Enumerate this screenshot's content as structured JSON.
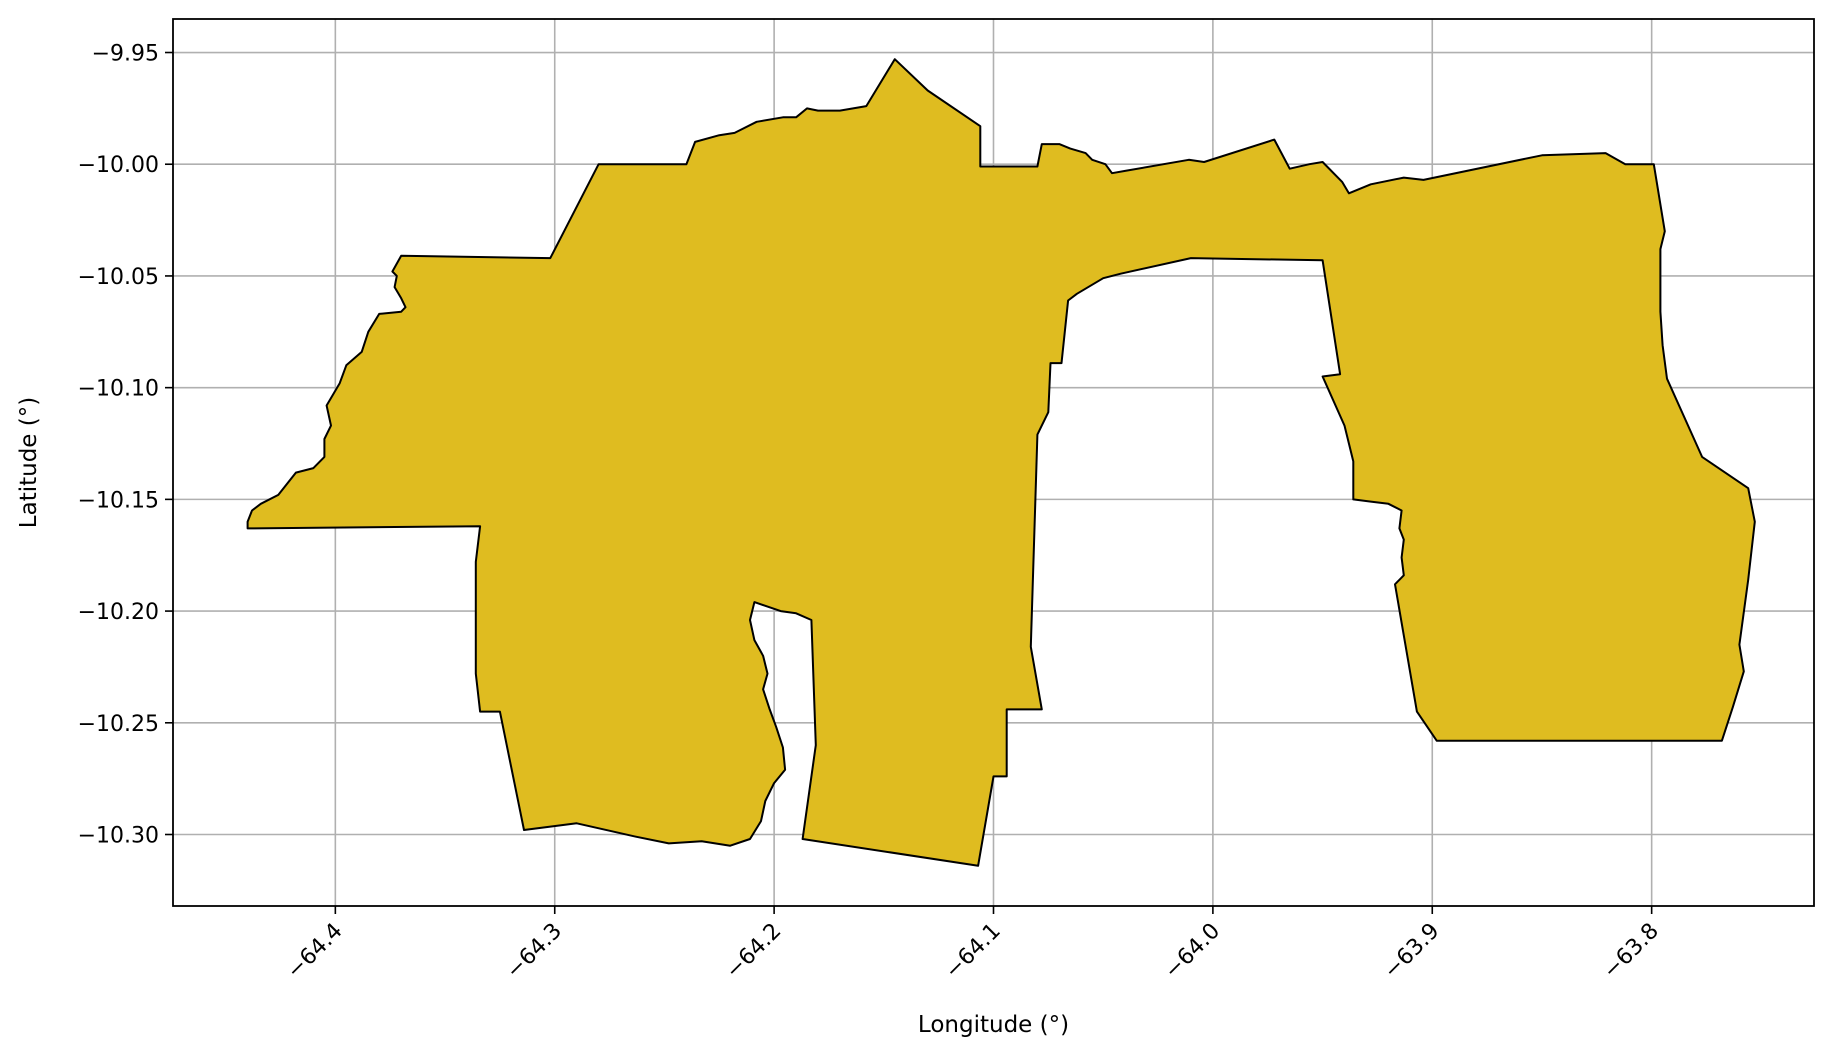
{
  "chart_data": {
    "type": "map",
    "xlabel": "Longitude (°)",
    "ylabel": "Latitude (°)",
    "xlim": [
      -64.474,
      -63.726
    ],
    "ylim": [
      -10.332,
      -9.935
    ],
    "xticks": [
      -64.4,
      -64.3,
      -64.2,
      -64.1,
      -64.0,
      -63.9,
      -63.8
    ],
    "xtick_labels": [
      "−64.4",
      "−64.3",
      "−64.2",
      "−64.1",
      "−64.0",
      "−63.9",
      "−63.8"
    ],
    "yticks": [
      -9.95,
      -10.0,
      -10.05,
      -10.1,
      -10.15,
      -10.2,
      -10.25,
      -10.3
    ],
    "ytick_labels": [
      "−9.95",
      "−10.00",
      "−10.05",
      "−10.10",
      "−10.15",
      "−10.20",
      "−10.25",
      "−10.30"
    ],
    "grid": true,
    "fill_color": "#dfbc20",
    "edge_color": "#000000",
    "region_outline": [
      [
        -64.44,
        -10.163
      ],
      [
        -64.334,
        -10.162
      ],
      [
        -64.336,
        -10.178
      ],
      [
        -64.336,
        -10.228
      ],
      [
        -64.334,
        -10.245
      ],
      [
        -64.325,
        -10.245
      ],
      [
        -64.314,
        -10.298
      ],
      [
        -64.29,
        -10.295
      ],
      [
        -64.263,
        -10.301
      ],
      [
        -64.248,
        -10.304
      ],
      [
        -64.233,
        -10.303
      ],
      [
        -64.22,
        -10.305
      ],
      [
        -64.211,
        -10.302
      ],
      [
        -64.206,
        -10.294
      ],
      [
        -64.204,
        -10.285
      ],
      [
        -64.2,
        -10.277
      ],
      [
        -64.195,
        -10.271
      ],
      [
        -64.196,
        -10.261
      ],
      [
        -64.199,
        -10.252
      ],
      [
        -64.202,
        -10.244
      ],
      [
        -64.205,
        -10.235
      ],
      [
        -64.203,
        -10.228
      ],
      [
        -64.205,
        -10.22
      ],
      [
        -64.209,
        -10.213
      ],
      [
        -64.211,
        -10.204
      ],
      [
        -64.209,
        -10.196
      ],
      [
        -64.203,
        -10.198
      ],
      [
        -64.197,
        -10.2
      ],
      [
        -64.19,
        -10.201
      ],
      [
        -64.183,
        -10.204
      ],
      [
        -64.181,
        -10.26
      ],
      [
        -64.187,
        -10.302
      ],
      [
        -64.107,
        -10.314
      ],
      [
        -64.1,
        -10.274
      ],
      [
        -64.094,
        -10.274
      ],
      [
        -64.094,
        -10.244
      ],
      [
        -64.078,
        -10.244
      ],
      [
        -64.083,
        -10.216
      ],
      [
        -64.08,
        -10.121
      ],
      [
        -64.075,
        -10.111
      ],
      [
        -64.074,
        -10.089
      ],
      [
        -64.069,
        -10.089
      ],
      [
        -64.066,
        -10.061
      ],
      [
        -64.062,
        -10.058
      ],
      [
        -64.05,
        -10.051
      ],
      [
        -64.042,
        -10.049
      ],
      [
        -64.01,
        -10.042
      ],
      [
        -63.95,
        -10.043
      ],
      [
        -63.942,
        -10.094
      ],
      [
        -63.95,
        -10.095
      ],
      [
        -63.94,
        -10.117
      ],
      [
        -63.936,
        -10.133
      ],
      [
        -63.936,
        -10.15
      ],
      [
        -63.928,
        -10.151
      ],
      [
        -63.92,
        -10.152
      ],
      [
        -63.914,
        -10.155
      ],
      [
        -63.915,
        -10.163
      ],
      [
        -63.913,
        -10.168
      ],
      [
        -63.914,
        -10.176
      ],
      [
        -63.913,
        -10.184
      ],
      [
        -63.917,
        -10.188
      ],
      [
        -63.907,
        -10.245
      ],
      [
        -63.898,
        -10.258
      ],
      [
        -63.768,
        -10.258
      ],
      [
        -63.763,
        -10.243
      ],
      [
        -63.758,
        -10.227
      ],
      [
        -63.76,
        -10.215
      ],
      [
        -63.756,
        -10.186
      ],
      [
        -63.753,
        -10.16
      ],
      [
        -63.756,
        -10.145
      ],
      [
        -63.777,
        -10.131
      ],
      [
        -63.793,
        -10.096
      ],
      [
        -63.795,
        -10.081
      ],
      [
        -63.796,
        -10.066
      ],
      [
        -63.796,
        -10.038
      ],
      [
        -63.794,
        -10.03
      ],
      [
        -63.799,
        -10.0
      ],
      [
        -63.812,
        -10.0
      ],
      [
        -63.821,
        -9.995
      ],
      [
        -63.85,
        -9.996
      ],
      [
        -63.904,
        -10.007
      ],
      [
        -63.913,
        -10.006
      ],
      [
        -63.928,
        -10.009
      ],
      [
        -63.938,
        -10.013
      ],
      [
        -63.941,
        -10.008
      ],
      [
        -63.95,
        -9.999
      ],
      [
        -63.956,
        -10.0
      ],
      [
        -63.965,
        -10.002
      ],
      [
        -63.972,
        -9.989
      ],
      [
        -64.004,
        -9.999
      ],
      [
        -64.011,
        -9.998
      ],
      [
        -64.04,
        -10.003
      ],
      [
        -64.046,
        -10.004
      ],
      [
        -64.049,
        -10.0
      ],
      [
        -64.055,
        -9.998
      ],
      [
        -64.058,
        -9.995
      ],
      [
        -64.065,
        -9.993
      ],
      [
        -64.07,
        -9.991
      ],
      [
        -64.075,
        -9.991
      ],
      [
        -64.078,
        -9.991
      ],
      [
        -64.08,
        -10.001
      ],
      [
        -64.106,
        -10.001
      ],
      [
        -64.106,
        -9.983
      ],
      [
        -64.13,
        -9.967
      ],
      [
        -64.145,
        -9.953
      ],
      [
        -64.158,
        -9.974
      ],
      [
        -64.17,
        -9.976
      ],
      [
        -64.18,
        -9.976
      ],
      [
        -64.185,
        -9.975
      ],
      [
        -64.19,
        -9.979
      ],
      [
        -64.196,
        -9.979
      ],
      [
        -64.208,
        -9.981
      ],
      [
        -64.218,
        -9.986
      ],
      [
        -64.225,
        -9.987
      ],
      [
        -64.236,
        -9.99
      ],
      [
        -64.24,
        -10.0
      ],
      [
        -64.28,
        -10.0
      ],
      [
        -64.302,
        -10.042
      ],
      [
        -64.37,
        -10.041
      ],
      [
        -64.374,
        -10.048
      ],
      [
        -64.372,
        -10.05
      ],
      [
        -64.373,
        -10.055
      ],
      [
        -64.37,
        -10.06
      ],
      [
        -64.368,
        -10.064
      ],
      [
        -64.37,
        -10.066
      ],
      [
        -64.38,
        -10.067
      ],
      [
        -64.385,
        -10.075
      ],
      [
        -64.388,
        -10.084
      ],
      [
        -64.395,
        -10.09
      ],
      [
        -64.398,
        -10.098
      ],
      [
        -64.404,
        -10.108
      ],
      [
        -64.402,
        -10.117
      ],
      [
        -64.405,
        -10.123
      ],
      [
        -64.405,
        -10.131
      ],
      [
        -64.41,
        -10.136
      ],
      [
        -64.418,
        -10.138
      ],
      [
        -64.426,
        -10.148
      ],
      [
        -64.434,
        -10.152
      ],
      [
        -64.438,
        -10.155
      ],
      [
        -64.44,
        -10.16
      ]
    ]
  }
}
